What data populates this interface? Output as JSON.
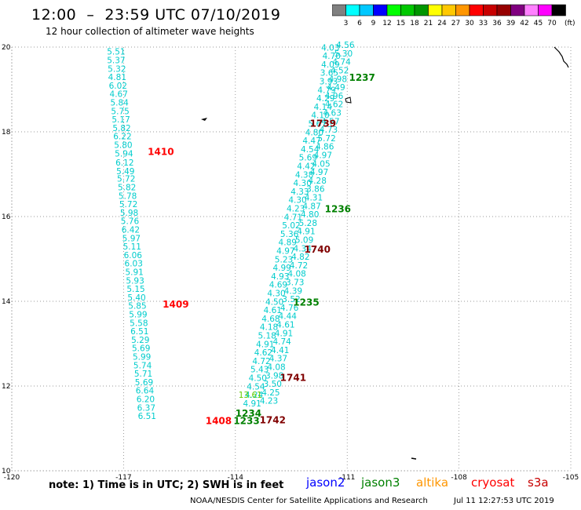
{
  "header": {
    "title": "12:00  –  23:59 UTC 07/10/2019",
    "subtitle": "12 hour collection of altimeter wave heights"
  },
  "colorbar": {
    "unit_label": "(ft)",
    "ticks": [
      "3",
      "6",
      "9",
      "12",
      "15",
      "18",
      "21",
      "24",
      "27",
      "30",
      "33",
      "36",
      "39",
      "42",
      "45",
      "70"
    ],
    "colors": [
      "#808080",
      "#00ffff",
      "#00c8ff",
      "#0000ff",
      "#00ff00",
      "#00c800",
      "#009600",
      "#ffff00",
      "#ffc800",
      "#ff9600",
      "#ff0000",
      "#c80000",
      "#960000",
      "#800080",
      "#ff80ff",
      "#ff00ff",
      "#000000"
    ]
  },
  "axes": {
    "x_ticks": [
      "-120",
      "-117",
      "-114",
      "-111",
      "-108",
      "-105"
    ],
    "y_ticks": [
      "10",
      "12",
      "14",
      "16",
      "18",
      "20"
    ]
  },
  "chart_data": {
    "type": "scatter",
    "xlim": [
      -120,
      -105
    ],
    "ylim": [
      10,
      20
    ],
    "grid": true,
    "tracks": [
      {
        "label_color": "#00cccc",
        "points": [
          [
            -117.2,
            19.82,
            "5.51"
          ],
          [
            -117.2,
            19.62,
            "5.37"
          ],
          [
            -117.18,
            19.42,
            "5.32"
          ],
          [
            -117.17,
            19.22,
            "4.81"
          ],
          [
            -117.15,
            19.02,
            "6.02"
          ],
          [
            -117.13,
            18.82,
            "4.67"
          ],
          [
            -117.11,
            18.62,
            "5.84"
          ],
          [
            -117.09,
            18.42,
            "5.75"
          ],
          [
            -117.07,
            18.22,
            "5.17"
          ],
          [
            -117.05,
            18.02,
            "5.82"
          ],
          [
            -117.03,
            17.82,
            "6.22"
          ],
          [
            -117.01,
            17.62,
            "5.80"
          ],
          [
            -116.99,
            17.42,
            "5.94"
          ],
          [
            -116.97,
            17.2,
            "6.12"
          ],
          [
            -116.95,
            17.0,
            "5.49"
          ],
          [
            -116.93,
            16.82,
            "5.72"
          ],
          [
            -116.91,
            16.62,
            "5.82"
          ],
          [
            -116.89,
            16.42,
            "5.78"
          ],
          [
            -116.87,
            16.22,
            "5.72"
          ],
          [
            -116.85,
            16.02,
            "5.98"
          ],
          [
            -116.83,
            15.82,
            "5.76"
          ],
          [
            -116.81,
            15.62,
            "6.42"
          ],
          [
            -116.79,
            15.42,
            "5.97"
          ],
          [
            -116.77,
            15.22,
            "5.11"
          ],
          [
            -116.75,
            15.02,
            "6.06"
          ],
          [
            -116.73,
            14.82,
            "6.03"
          ],
          [
            -116.71,
            14.62,
            "5.91"
          ],
          [
            -116.69,
            14.42,
            "5.93"
          ],
          [
            -116.67,
            14.22,
            "5.15"
          ],
          [
            -116.65,
            14.02,
            "5.40"
          ],
          [
            -116.63,
            13.82,
            "5.85"
          ],
          [
            -116.61,
            13.62,
            "5.99"
          ],
          [
            -116.59,
            13.42,
            "5.58"
          ],
          [
            -116.57,
            13.22,
            "6.51"
          ],
          [
            -116.55,
            13.02,
            "5.29"
          ],
          [
            -116.53,
            12.82,
            "5.69"
          ],
          [
            -116.51,
            12.62,
            "5.99"
          ],
          [
            -116.49,
            12.42,
            "5.74"
          ],
          [
            -116.47,
            12.22,
            "5.71"
          ],
          [
            -116.45,
            12.02,
            "5.69"
          ],
          [
            -116.43,
            11.82,
            "6.64"
          ],
          [
            -116.41,
            11.62,
            "6.20"
          ],
          [
            -116.39,
            11.42,
            "6.37"
          ],
          [
            -116.37,
            11.22,
            "6.51"
          ]
        ]
      },
      {
        "label_color": "#00cccc",
        "points": [
          [
            -111.45,
            19.92,
            "4.03"
          ],
          [
            -111.42,
            19.72,
            "4.70"
          ],
          [
            -111.45,
            19.52,
            "4.09"
          ],
          [
            -111.48,
            19.32,
            "3.65"
          ],
          [
            -111.5,
            19.12,
            "3.93"
          ],
          [
            -111.55,
            18.92,
            "4.79"
          ],
          [
            -111.58,
            18.72,
            "4.29"
          ],
          [
            -111.65,
            18.52,
            "4.14"
          ],
          [
            -111.72,
            18.32,
            "4.10"
          ],
          [
            -111.8,
            18.12,
            "5.67"
          ],
          [
            -111.88,
            17.92,
            "4.80"
          ],
          [
            -111.95,
            17.72,
            "4.47"
          ],
          [
            -112.0,
            17.52,
            "4.54"
          ],
          [
            -112.05,
            17.32,
            "5.69"
          ],
          [
            -112.1,
            17.12,
            "4.42"
          ],
          [
            -112.15,
            16.92,
            "4.38"
          ],
          [
            -112.2,
            16.72,
            "4.30"
          ],
          [
            -112.27,
            16.52,
            "4.33"
          ],
          [
            -112.33,
            16.32,
            "4.30"
          ],
          [
            -112.38,
            16.12,
            "4.23"
          ],
          [
            -112.45,
            15.92,
            "4.71"
          ],
          [
            -112.5,
            15.72,
            "5.02"
          ],
          [
            -112.55,
            15.52,
            "5.36"
          ],
          [
            -112.6,
            15.32,
            "4.89"
          ],
          [
            -112.65,
            15.12,
            "4.97"
          ],
          [
            -112.7,
            14.92,
            "5.23"
          ],
          [
            -112.75,
            14.72,
            "4.99"
          ],
          [
            -112.8,
            14.52,
            "4.93"
          ],
          [
            -112.85,
            14.32,
            "4.69"
          ],
          [
            -112.9,
            14.12,
            "4.30"
          ],
          [
            -112.95,
            13.92,
            "4.50"
          ],
          [
            -113.0,
            13.72,
            "4.61"
          ],
          [
            -113.05,
            13.52,
            "4.68"
          ],
          [
            -113.1,
            13.32,
            "4.18"
          ],
          [
            -113.15,
            13.12,
            "5.18"
          ],
          [
            -113.2,
            12.92,
            "4.91"
          ],
          [
            -113.25,
            12.72,
            "4.62"
          ],
          [
            -113.3,
            12.52,
            "4.72"
          ],
          [
            -113.35,
            12.32,
            "5.43"
          ],
          [
            -113.4,
            12.12,
            "4.50"
          ],
          [
            -113.45,
            11.92,
            "4.54"
          ],
          [
            -113.5,
            11.72,
            "4.24"
          ],
          [
            -113.55,
            11.52,
            "4.91"
          ]
        ]
      },
      {
        "label_color": "#00cccc",
        "points": [
          [
            -111.05,
            19.98,
            "4.56"
          ],
          [
            -111.1,
            19.78,
            "5.30"
          ],
          [
            -111.15,
            19.58,
            "4.74"
          ],
          [
            -111.2,
            19.38,
            "4.52"
          ],
          [
            -111.25,
            19.18,
            "4.98"
          ],
          [
            -111.3,
            18.98,
            "4.49"
          ],
          [
            -111.35,
            18.78,
            "4.96"
          ],
          [
            -111.35,
            18.58,
            "4.62"
          ],
          [
            -111.4,
            18.38,
            "4.63"
          ],
          [
            -111.45,
            18.18,
            "4.57"
          ],
          [
            -111.5,
            17.98,
            "4.73"
          ],
          [
            -111.55,
            17.78,
            "5.72"
          ],
          [
            -111.6,
            17.58,
            "4.86"
          ],
          [
            -111.65,
            17.38,
            "4.97"
          ],
          [
            -111.7,
            17.18,
            "4.05"
          ],
          [
            -111.75,
            16.98,
            "4.97"
          ],
          [
            -111.8,
            16.78,
            "4.28"
          ],
          [
            -111.85,
            16.58,
            "3.86"
          ],
          [
            -111.9,
            16.38,
            "4.31"
          ],
          [
            -111.95,
            16.18,
            "4.87"
          ],
          [
            -112.0,
            15.98,
            "4.80"
          ],
          [
            -112.05,
            15.78,
            "5.28"
          ],
          [
            -112.1,
            15.58,
            "4.91"
          ],
          [
            -112.15,
            15.38,
            "5.09"
          ],
          [
            -112.2,
            15.18,
            "4.34"
          ],
          [
            -112.25,
            14.98,
            "4.82"
          ],
          [
            -112.3,
            14.78,
            "4.72"
          ],
          [
            -112.35,
            14.58,
            "4.08"
          ],
          [
            -112.4,
            14.38,
            "3.73"
          ],
          [
            -112.45,
            14.18,
            "4.39"
          ],
          [
            -112.5,
            13.98,
            "3.52"
          ],
          [
            -112.55,
            13.78,
            "4.76"
          ],
          [
            -112.6,
            13.58,
            "4.44"
          ],
          [
            -112.65,
            13.38,
            "4.61"
          ],
          [
            -112.7,
            13.18,
            "4.91"
          ],
          [
            -112.75,
            12.98,
            "4.74"
          ],
          [
            -112.8,
            12.78,
            "4.41"
          ],
          [
            -112.85,
            12.58,
            "4.37"
          ],
          [
            -112.9,
            12.38,
            "4.08"
          ],
          [
            -112.95,
            12.18,
            "3.98"
          ],
          [
            -113.0,
            11.98,
            "3.50"
          ],
          [
            -113.05,
            11.78,
            "4.25"
          ],
          [
            -113.1,
            11.58,
            "4.23"
          ]
        ]
      },
      {
        "label_color": "#66cc00",
        "points": [
          [
            -113.6,
            11.72,
            "13.61"
          ]
        ]
      }
    ],
    "pass_labels": [
      {
        "lon": -116.0,
        "lat": 17.45,
        "text": "1410",
        "color": "#ff0000"
      },
      {
        "lon": -115.6,
        "lat": 13.85,
        "text": "1409",
        "color": "#ff0000"
      },
      {
        "lon": -114.45,
        "lat": 11.1,
        "text": "1408",
        "color": "#ff0000"
      },
      {
        "lon": -110.6,
        "lat": 19.2,
        "text": "1237",
        "color": "#008000"
      },
      {
        "lon": -111.25,
        "lat": 16.1,
        "text": "1236",
        "color": "#008000"
      },
      {
        "lon": -112.1,
        "lat": 13.9,
        "text": "1235",
        "color": "#008000"
      },
      {
        "lon": -113.65,
        "lat": 11.28,
        "text": "1234",
        "color": "#008000"
      },
      {
        "lon": -113.7,
        "lat": 11.1,
        "text": "1233",
        "color": "#008000"
      },
      {
        "lon": -111.65,
        "lat": 18.12,
        "text": "1739",
        "color": "#800000"
      },
      {
        "lon": -111.8,
        "lat": 15.15,
        "text": "1740",
        "color": "#800000"
      },
      {
        "lon": -112.45,
        "lat": 12.12,
        "text": "1741",
        "color": "#800000"
      },
      {
        "lon": -113.0,
        "lat": 11.12,
        "text": "1742",
        "color": "#800000"
      }
    ]
  },
  "footer": {
    "note": "note: 1) Time is in UTC; 2) SWH is in feet",
    "legend": [
      {
        "label": "jason2",
        "color": "#0000ff"
      },
      {
        "label": "jason3",
        "color": "#008000"
      },
      {
        "label": "altika",
        "color": "#ff9600"
      },
      {
        "label": "cryosat",
        "color": "#ff0000"
      },
      {
        "label": "s3a",
        "color": "#c80000"
      }
    ],
    "credit": "NOAA/NESDIS Center for Satellite Applications and Research",
    "timestamp": "Jul 11 12:27:53 UTC 2019"
  }
}
